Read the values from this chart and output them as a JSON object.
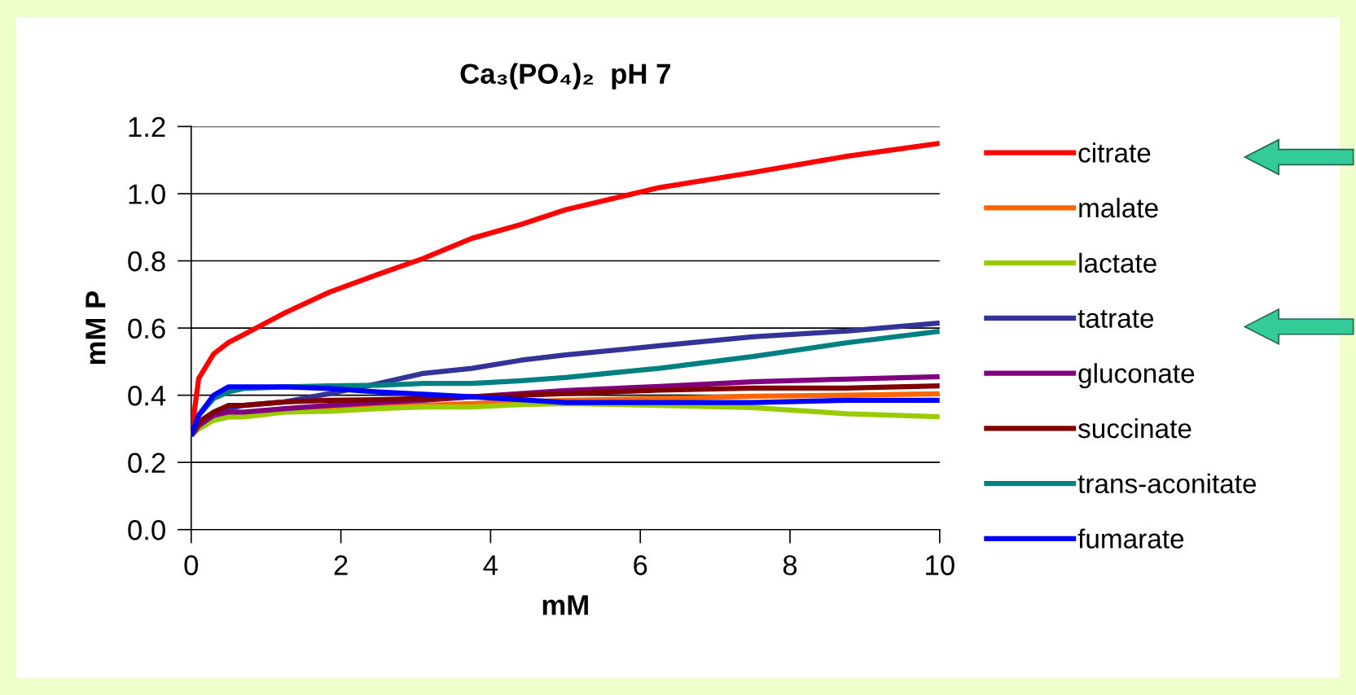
{
  "chart_data": {
    "type": "line",
    "title": "Ca₃(PO₄)₂  pH 7",
    "xlabel": "mM",
    "ylabel": "mM P",
    "x": [
      0,
      0.1,
      0.3,
      0.5,
      0.7,
      1.25,
      1.85,
      2.5,
      3.1,
      3.75,
      4.4,
      5,
      6.25,
      7.5,
      8.75,
      10
    ],
    "series": [
      {
        "name": "citrate",
        "color": "#ff0000",
        "values": [
          0.28,
          0.45,
          0.523,
          0.557,
          0.58,
          0.645,
          0.707,
          0.76,
          0.807,
          0.867,
          0.908,
          0.952,
          1.018,
          1.063,
          1.111,
          1.15
        ]
      },
      {
        "name": "malate",
        "color": "#ff6600",
        "values": [
          null,
          null,
          null,
          null,
          null,
          0.355,
          0.36,
          0.365,
          0.37,
          0.375,
          0.38,
          0.385,
          0.39,
          0.397,
          0.4,
          0.404
        ]
      },
      {
        "name": "lactate",
        "color": "#99cc00",
        "values": [
          0.28,
          0.3,
          0.325,
          0.335,
          0.335,
          0.35,
          0.352,
          0.36,
          0.365,
          0.365,
          0.372,
          0.375,
          0.37,
          0.363,
          0.345,
          0.336
        ]
      },
      {
        "name": "tatrate",
        "color": "#333399",
        "values": [
          0.28,
          0.31,
          0.345,
          0.36,
          0.37,
          0.38,
          0.405,
          0.435,
          0.465,
          0.48,
          0.504,
          0.52,
          0.547,
          0.574,
          0.591,
          0.615
        ]
      },
      {
        "name": "gluconate",
        "color": "#800080",
        "values": [
          0.28,
          0.31,
          0.34,
          0.35,
          0.35,
          0.36,
          0.37,
          0.378,
          0.385,
          0.395,
          0.405,
          0.414,
          0.426,
          0.44,
          0.448,
          0.455
        ]
      },
      {
        "name": "succinate",
        "color": "#800000",
        "values": [
          0.28,
          0.32,
          0.35,
          0.37,
          0.37,
          0.38,
          0.385,
          0.387,
          0.39,
          0.395,
          0.4,
          0.405,
          0.415,
          0.421,
          0.421,
          0.428
        ]
      },
      {
        "name": "trans-aconitate",
        "color": "#008080",
        "values": [
          0.28,
          0.34,
          0.39,
          0.41,
          0.42,
          0.425,
          0.428,
          0.43,
          0.435,
          0.435,
          0.443,
          0.453,
          0.48,
          0.515,
          0.556,
          0.59
        ]
      },
      {
        "name": "fumarate",
        "color": "#0000ff",
        "values": [
          0.28,
          0.34,
          0.4,
          0.425,
          0.425,
          0.425,
          0.42,
          0.41,
          0.403,
          0.395,
          0.387,
          0.378,
          0.378,
          0.378,
          0.385,
          0.385
        ]
      }
    ],
    "xlim": [
      0,
      10
    ],
    "xticks": [
      0,
      2,
      4,
      6,
      8,
      10
    ],
    "ylim": [
      0,
      1.2
    ],
    "yticks": [
      {
        "value": 0,
        "label": "0.0"
      },
      {
        "value": 0.2,
        "label": "0.2"
      },
      {
        "value": 0.4,
        "label": "0.4"
      },
      {
        "value": 0.6,
        "label": "0.6"
      },
      {
        "value": 0.8,
        "label": "0.8"
      },
      {
        "value": 1.0,
        "label": "1.0"
      },
      {
        "value": 1.2,
        "label": "1.2"
      }
    ],
    "grid": "y",
    "legend": "right",
    "marker": "none",
    "line_style": "solid"
  }
}
